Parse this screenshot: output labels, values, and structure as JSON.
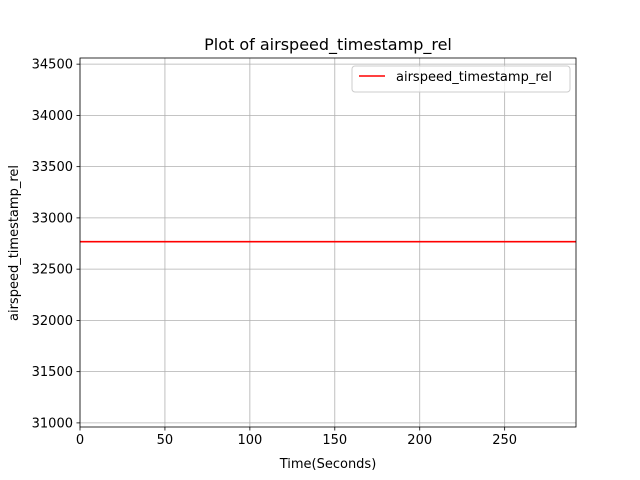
{
  "chart_data": {
    "type": "line",
    "title": "Plot of airspeed_timestamp_rel",
    "xlabel": "Time(Seconds)",
    "ylabel": "airspeed_timestamp_rel",
    "xlim": [
      0,
      292
    ],
    "ylim": [
      30960,
      34560
    ],
    "xticks": [
      0,
      50,
      100,
      150,
      200,
      250
    ],
    "yticks": [
      31000,
      31500,
      32000,
      32500,
      33000,
      33500,
      34000,
      34500
    ],
    "grid": true,
    "legend_position": "top-right",
    "series": [
      {
        "name": "airspeed_timestamp_rel",
        "color": "#ff0000",
        "x": [
          0,
          292
        ],
        "y": [
          32768,
          32768
        ]
      }
    ]
  }
}
